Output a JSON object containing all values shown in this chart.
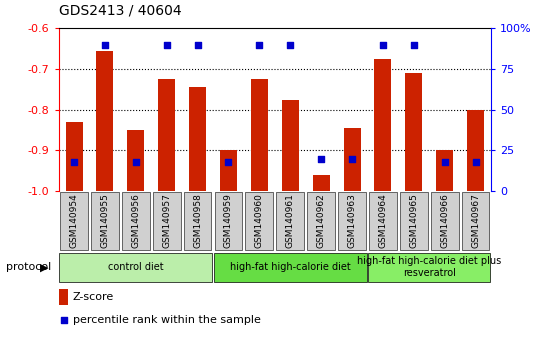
{
  "title": "GDS2413 / 40604",
  "samples": [
    "GSM140954",
    "GSM140955",
    "GSM140956",
    "GSM140957",
    "GSM140958",
    "GSM140959",
    "GSM140960",
    "GSM140961",
    "GSM140962",
    "GSM140963",
    "GSM140964",
    "GSM140965",
    "GSM140966",
    "GSM140967"
  ],
  "zscore": [
    -0.83,
    -0.655,
    -0.85,
    -0.725,
    -0.745,
    -0.9,
    -0.725,
    -0.775,
    -0.96,
    -0.845,
    -0.675,
    -0.71,
    -0.9,
    -0.8
  ],
  "percentile_right": [
    18,
    90,
    18,
    90,
    90,
    18,
    90,
    90,
    20,
    20,
    90,
    90,
    18,
    18
  ],
  "ylim_left": [
    -1.0,
    -0.6
  ],
  "ylim_right": [
    0,
    100
  ],
  "yticks_left": [
    -1.0,
    -0.9,
    -0.8,
    -0.7,
    -0.6
  ],
  "yticks_right": [
    0,
    25,
    50,
    75,
    100
  ],
  "bar_color": "#cc2200",
  "dot_color": "#0000cc",
  "protocols": [
    {
      "label": "control diet",
      "start": 0,
      "end": 5,
      "color": "#bbeeaa"
    },
    {
      "label": "high-fat high-calorie diet",
      "start": 5,
      "end": 10,
      "color": "#66dd44"
    },
    {
      "label": "high-fat high-calorie diet plus\nresveratrol",
      "start": 10,
      "end": 14,
      "color": "#88ee66"
    }
  ],
  "protocol_label": "protocol",
  "legend_zscore": "Z-score",
  "legend_percentile": "percentile rank within the sample",
  "dotted_gridlines": [
    -0.9,
    -0.8,
    -0.7
  ],
  "sample_box_color": "#d0d0d0"
}
